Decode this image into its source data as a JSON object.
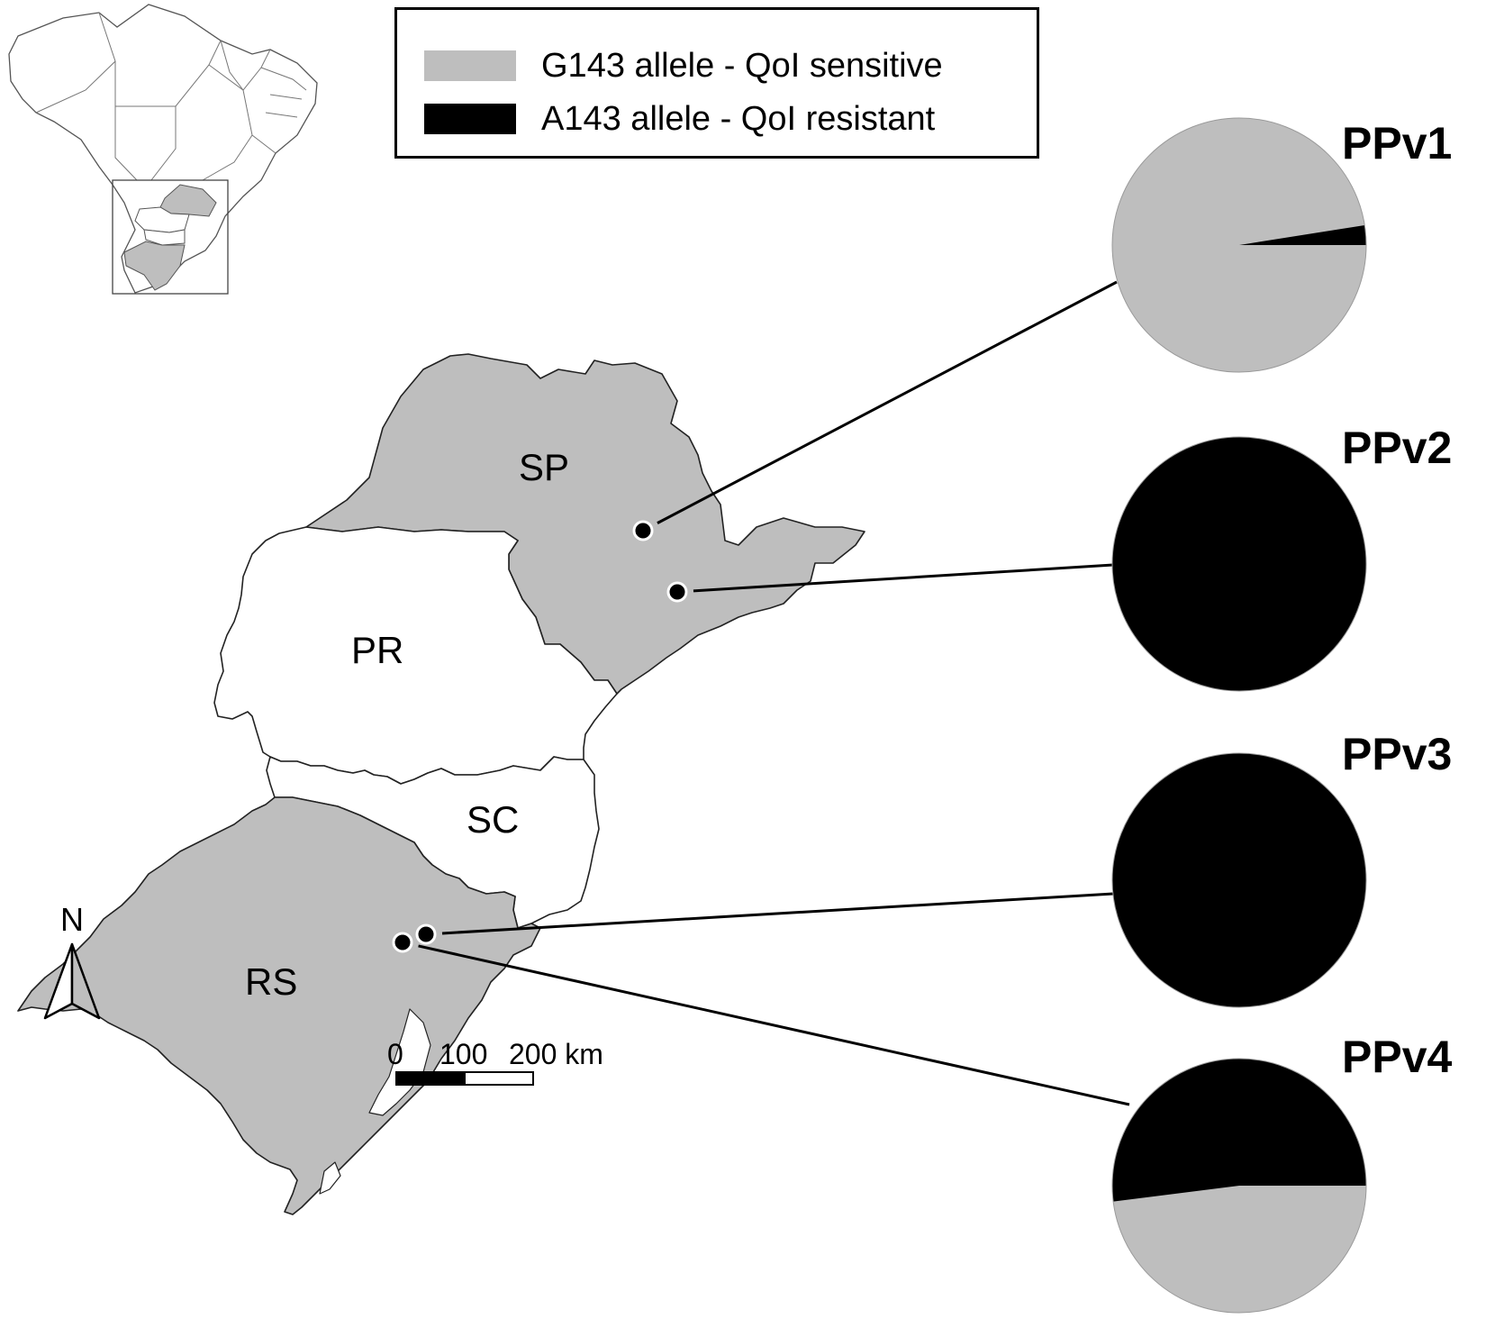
{
  "legend": {
    "items": [
      {
        "label": "G143 allele - QoI sensitive",
        "color": "#bebebe"
      },
      {
        "label": "A143 allele - QoI resistant",
        "color": "#000000"
      }
    ]
  },
  "states": {
    "sp": "SP",
    "pr": "PR",
    "sc": "SC",
    "rs": "RS"
  },
  "colors": {
    "highlighted_state": "#bebebe",
    "other_state": "#ffffff",
    "sensitive": "#bebebe",
    "resistant": "#000000"
  },
  "pies": [
    {
      "label": "PPv1",
      "sensitive_fraction": 0.975,
      "resistant_fraction": 0.025
    },
    {
      "label": "PPv2",
      "sensitive_fraction": 0.0,
      "resistant_fraction": 1.0
    },
    {
      "label": "PPv3",
      "sensitive_fraction": 0.0,
      "resistant_fraction": 1.0
    },
    {
      "label": "PPv4",
      "sensitive_fraction": 0.48,
      "resistant_fraction": 0.52
    }
  ],
  "scale_bar": {
    "tick_0": "0",
    "tick_1": "100",
    "tick_2": "200 km"
  },
  "north_arrow": {
    "label": "N",
    "icon": "north-arrow-icon"
  }
}
